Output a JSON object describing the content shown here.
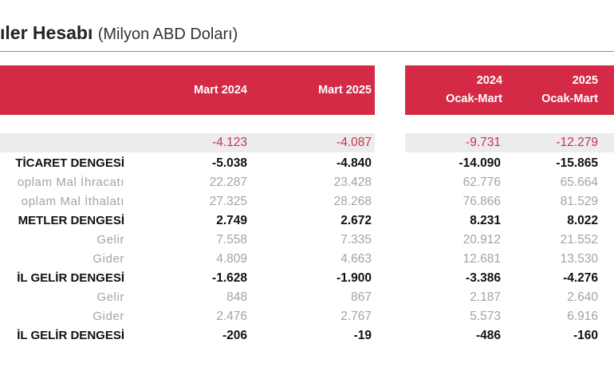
{
  "title": {
    "main": "ıler Hesabı",
    "sub": "(Milyon ABD Doları)"
  },
  "header": {
    "col1": "Mart 2024",
    "col2": "Mart 2025",
    "col3_line1": "2024",
    "col3_line2": "Ocak-Mart",
    "col4_line1": "2025",
    "col4_line2": "Ocak-Mart"
  },
  "rows": [
    {
      "label": "",
      "v1": "-4.123",
      "v2": "-4.087",
      "v3": "-9.731",
      "v4": "-12.279"
    },
    {
      "label": "TİCARET DENGESİ",
      "v1": "-5.038",
      "v2": "-4.840",
      "v3": "-14.090",
      "v4": "-15.865"
    },
    {
      "label": "oplam Mal İhracatı",
      "v1": "22.287",
      "v2": "23.428",
      "v3": "62.776",
      "v4": "65.664"
    },
    {
      "label": "oplam Mal İthalatı",
      "v1": "27.325",
      "v2": "28.268",
      "v3": "76.866",
      "v4": "81.529"
    },
    {
      "label": "METLER DENGESİ",
      "v1": "2.749",
      "v2": "2.672",
      "v3": "8.231",
      "v4": "8.022"
    },
    {
      "label": "Gelir",
      "v1": "7.558",
      "v2": "7.335",
      "v3": "20.912",
      "v4": "21.552"
    },
    {
      "label": "Gider",
      "v1": "4.809",
      "v2": "4.663",
      "v3": "12.681",
      "v4": "13.530"
    },
    {
      "label": "İL GELİR DENGESİ",
      "v1": "-1.628",
      "v2": "-1.900",
      "v3": "-3.386",
      "v4": "-4.276"
    },
    {
      "label": "Gelir",
      "v1": "848",
      "v2": "867",
      "v3": "2.187",
      "v4": "2.640"
    },
    {
      "label": "Gider",
      "v1": "2.476",
      "v2": "2.767",
      "v3": "5.573",
      "v4": "6.916"
    },
    {
      "label": "İL GELİR DENGESİ",
      "v1": "-206",
      "v2": "-19",
      "v3": "-486",
      "v4": "-160"
    }
  ],
  "colors": {
    "header_red": "#d42a46",
    "negative_red": "#c8334d",
    "band_gray": "#ececec",
    "muted_text": "#a3a3a3"
  }
}
